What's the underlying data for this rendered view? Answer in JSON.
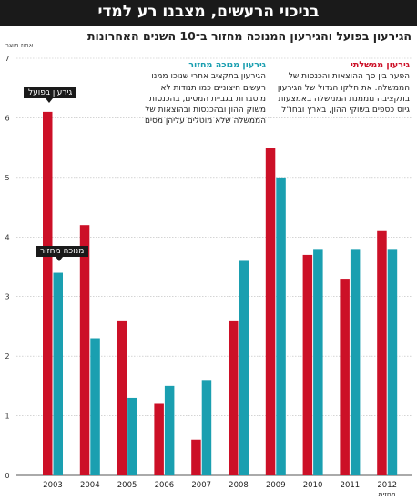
{
  "header": {
    "title": "בניכוי הרעשים, מצבנו רע למדי",
    "subtitle": "הגירעון בפועל והגירעון המנוכה מחזור ב־10 השנים האחרונות",
    "unit": "אחוז תוצר"
  },
  "annotations": {
    "government_deficit": {
      "title": "גירעון ממשלתי",
      "text": "הפער בין סך ההוצאות והכנסות של הממשלה. את חלקו הגדול של הגירעון בתקציבה מממנת הממשלה באמצעות גיוס כספים בשוקי ההון, בארץ ובחו\"ל"
    },
    "cyclically_adjusted": {
      "title": "גירעון מנוכה מחזור",
      "text": "הגירעון בתקציב אחרי שנוכו ממנו רעשים חיצוניים כמו תנודות לא מוסברות בגביית המסים, בהכנסות משוק ההון ובהכנסות ובהוצאות של הממשלה שלא מוטלים עליהן מסים"
    }
  },
  "callouts": {
    "actual": "גירעון בפועל",
    "adjusted": "מנוכה מחזור"
  },
  "colors": {
    "actual": "#cc1027",
    "adjusted": "#1a9fb0"
  },
  "chart_data": {
    "type": "bar",
    "categories": [
      "2003",
      "2004",
      "2005",
      "2006",
      "2007",
      "2008",
      "2009",
      "2010",
      "2011",
      "2012"
    ],
    "category_sublabels": {
      "2012": "תחזית"
    },
    "series": [
      {
        "name": "גירעון בפועל",
        "values": [
          6.1,
          4.2,
          2.6,
          1.2,
          0.6,
          2.6,
          5.5,
          3.7,
          3.3,
          4.1
        ]
      },
      {
        "name": "מנוכה מחזור",
        "values": [
          3.4,
          2.3,
          1.3,
          1.5,
          1.6,
          3.6,
          5.0,
          3.8,
          3.8,
          3.8
        ]
      }
    ],
    "ylim": [
      0,
      7
    ],
    "yticks": [
      0,
      1,
      2,
      3,
      4,
      5,
      6,
      7
    ],
    "ylabel": "אחוז תוצר",
    "grid": true
  }
}
